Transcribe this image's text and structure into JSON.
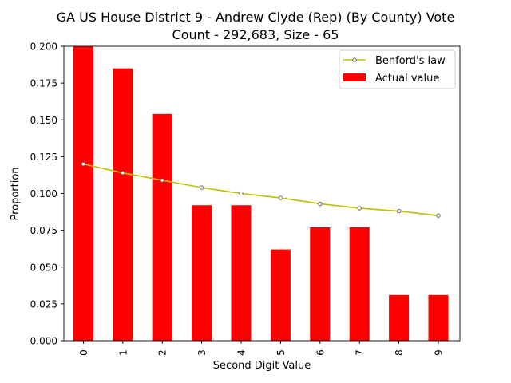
{
  "chart_data": {
    "type": "bar",
    "title_line1": "GA US House District 9 - Andrew Clyde (Rep) (By County) Vote",
    "title_line2": "Count - 292,683, Size - 65",
    "xlabel": "Second Digit Value",
    "ylabel": "Proportion",
    "categories": [
      "0",
      "1",
      "2",
      "3",
      "4",
      "5",
      "6",
      "7",
      "8",
      "9"
    ],
    "ylim": [
      0,
      0.2
    ],
    "yticks": [
      "0.000",
      "0.025",
      "0.050",
      "0.075",
      "0.100",
      "0.125",
      "0.150",
      "0.175",
      "0.200"
    ],
    "ytick_values": [
      0,
      0.025,
      0.05,
      0.075,
      0.1,
      0.125,
      0.15,
      0.175,
      0.2
    ],
    "series": [
      {
        "name": "Actual value",
        "kind": "bar",
        "color": "#ff0000",
        "values": [
          0.2,
          0.185,
          0.154,
          0.092,
          0.092,
          0.062,
          0.077,
          0.077,
          0.031,
          0.031
        ]
      },
      {
        "name": "Benford's law",
        "kind": "line",
        "color": "#bfbf00",
        "values": [
          0.12,
          0.114,
          0.109,
          0.104,
          0.1,
          0.097,
          0.093,
          0.09,
          0.088,
          0.085
        ]
      }
    ],
    "legend_position": "upper right",
    "grid": false
  }
}
